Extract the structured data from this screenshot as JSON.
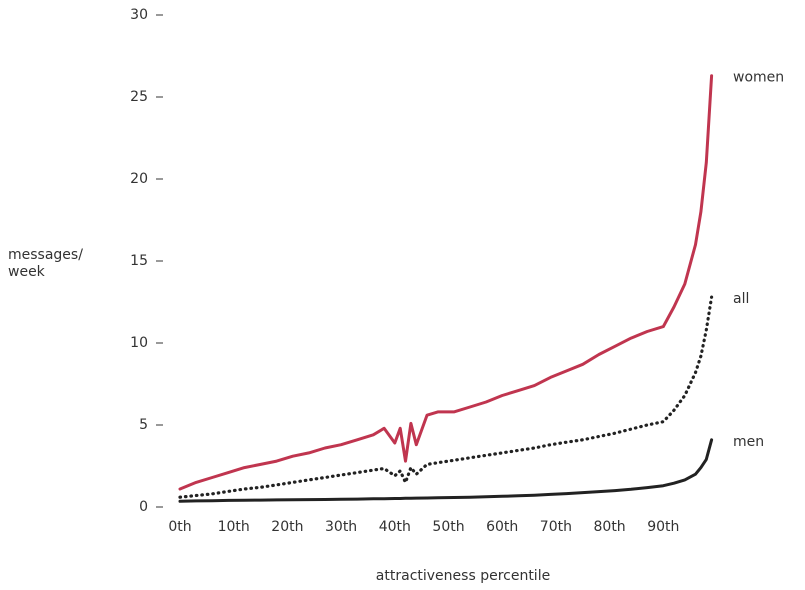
{
  "chart_data": {
    "type": "line",
    "x_label": "attractiveness percentile",
    "y_label": "messages/ week",
    "x": [
      0,
      3,
      6,
      9,
      12,
      15,
      18,
      21,
      24,
      27,
      30,
      33,
      36,
      38,
      40,
      41,
      42,
      43,
      44,
      46,
      48,
      51,
      54,
      57,
      60,
      63,
      66,
      69,
      72,
      75,
      78,
      81,
      84,
      87,
      90,
      92,
      94,
      96,
      97,
      98,
      99
    ],
    "series": [
      {
        "name": "women",
        "color": "#c0354f",
        "style": "solid",
        "values": [
          1.1,
          1.5,
          1.8,
          2.1,
          2.4,
          2.6,
          2.8,
          3.1,
          3.3,
          3.6,
          3.8,
          4.1,
          4.4,
          4.8,
          3.9,
          4.8,
          2.8,
          5.1,
          3.8,
          5.6,
          5.8,
          5.8,
          6.1,
          6.4,
          6.8,
          7.1,
          7.4,
          7.9,
          8.3,
          8.7,
          9.3,
          9.8,
          10.3,
          10.7,
          11.0,
          12.2,
          13.6,
          16.0,
          18,
          21,
          26.3
        ]
      },
      {
        "name": "all",
        "color": "#222222",
        "style": "dotted",
        "values": [
          0.6,
          0.7,
          0.8,
          0.95,
          1.1,
          1.2,
          1.35,
          1.5,
          1.65,
          1.8,
          1.95,
          2.1,
          2.25,
          2.35,
          1.9,
          2.2,
          1.5,
          2.4,
          2.0,
          2.6,
          2.7,
          2.85,
          3.0,
          3.15,
          3.3,
          3.45,
          3.6,
          3.8,
          3.95,
          4.1,
          4.3,
          4.5,
          4.75,
          5.0,
          5.2,
          5.9,
          6.8,
          8.2,
          9.2,
          10.8,
          12.8
        ]
      },
      {
        "name": "men",
        "color": "#222222",
        "style": "solid",
        "values": [
          0.35,
          0.37,
          0.38,
          0.4,
          0.41,
          0.42,
          0.43,
          0.44,
          0.45,
          0.46,
          0.47,
          0.48,
          0.5,
          0.5,
          0.52,
          0.52,
          0.53,
          0.53,
          0.54,
          0.55,
          0.56,
          0.58,
          0.6,
          0.62,
          0.65,
          0.68,
          0.72,
          0.77,
          0.82,
          0.88,
          0.94,
          1.0,
          1.08,
          1.18,
          1.3,
          1.45,
          1.65,
          2.0,
          2.4,
          2.9,
          4.1
        ]
      }
    ],
    "xlim": [
      0,
      100
    ],
    "ylim": [
      0,
      30
    ],
    "xticks": [
      {
        "value": 0,
        "label": "0th"
      },
      {
        "value": 10,
        "label": "10th"
      },
      {
        "value": 20,
        "label": "20th"
      },
      {
        "value": 30,
        "label": "30th"
      },
      {
        "value": 40,
        "label": "40th"
      },
      {
        "value": 50,
        "label": "50th"
      },
      {
        "value": 60,
        "label": "60th"
      },
      {
        "value": 70,
        "label": "70th"
      },
      {
        "value": 80,
        "label": "80th"
      },
      {
        "value": 90,
        "label": "90th"
      }
    ],
    "yticks": [
      0,
      5,
      10,
      15,
      20,
      25,
      30
    ]
  }
}
